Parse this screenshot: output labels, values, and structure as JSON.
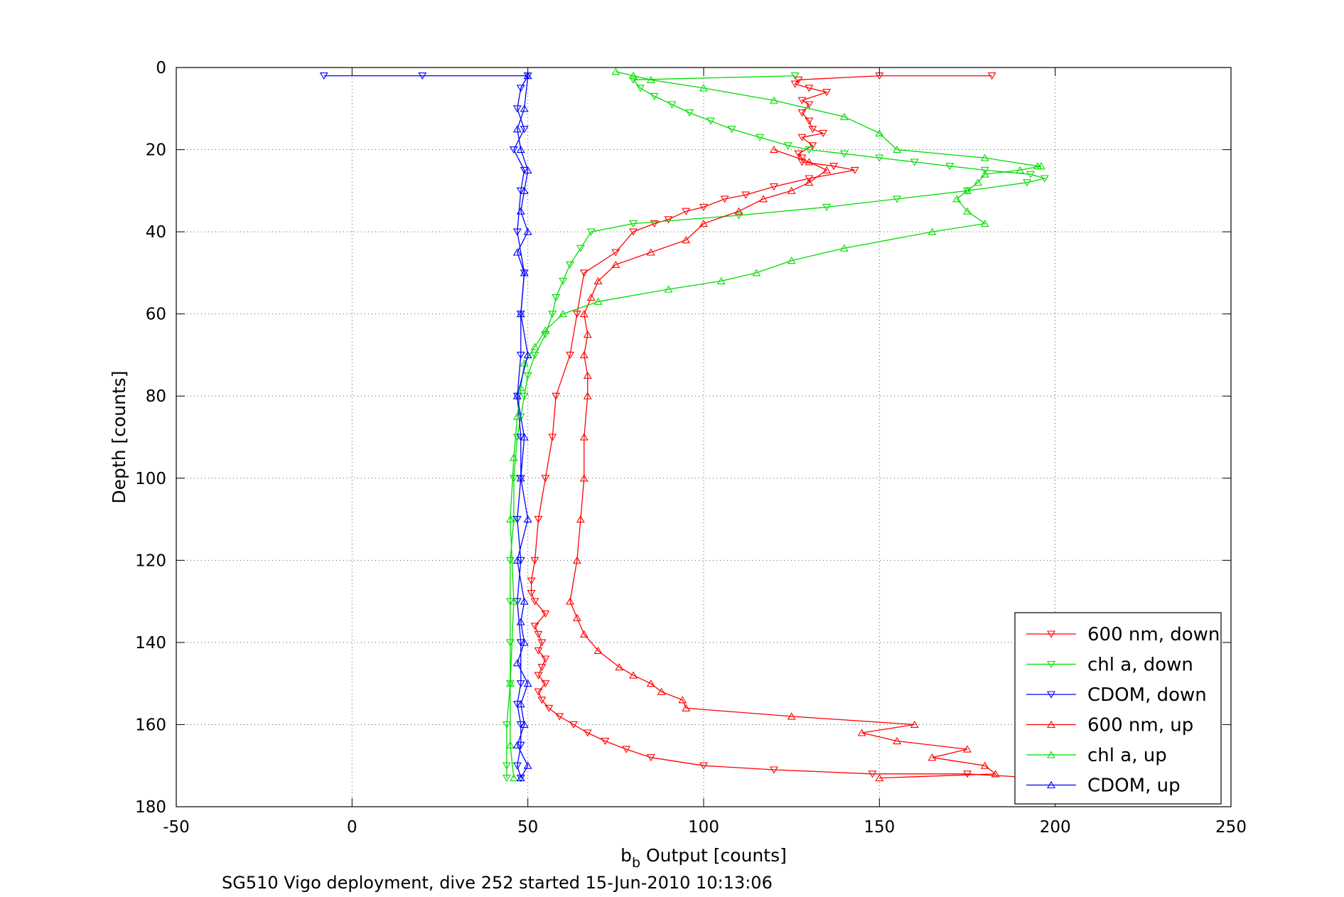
{
  "chart_data": {
    "type": "line",
    "xlabel_main": "b",
    "xlabel_sub": "b",
    "xlabel_rest": " Output [counts]",
    "ylabel": "Depth [counts]",
    "caption": "SG510 Vigo deployment, dive 252 started 15-Jun-2010 10:13:06",
    "xlim": [
      -50,
      250
    ],
    "ylim": [
      0,
      180
    ],
    "y_reversed": true,
    "xticks": [
      -50,
      0,
      50,
      100,
      150,
      200,
      250
    ],
    "yticks": [
      0,
      20,
      40,
      60,
      80,
      100,
      120,
      140,
      160,
      180
    ],
    "xtick_labels": [
      "-50",
      "0",
      "50",
      "100",
      "150",
      "200",
      "250"
    ],
    "ytick_labels": [
      "0",
      "20",
      "40",
      "60",
      "80",
      "100",
      "120",
      "140",
      "160",
      "180"
    ],
    "grid": true,
    "legend_position": "bottom-right",
    "series": [
      {
        "name": "600 nm, down",
        "color": "#ff0000",
        "marker": "triangle-down",
        "x": [
          182,
          150,
          127,
          126,
          130,
          135,
          128,
          130,
          128,
          130,
          131,
          134,
          128,
          131,
          127,
          128,
          128,
          137,
          143,
          130,
          120,
          112,
          106,
          100,
          95,
          90,
          86,
          80,
          75,
          66,
          64,
          62,
          58,
          57,
          55,
          53,
          52,
          51,
          51,
          52,
          55,
          52,
          53,
          54,
          53,
          55,
          54,
          53,
          55,
          53,
          54,
          56,
          59,
          63,
          67,
          72,
          78,
          85,
          100,
          120,
          148,
          175,
          195,
          200
        ],
        "y": [
          2,
          2,
          3,
          4,
          5,
          6,
          8,
          9,
          11,
          13,
          15,
          16,
          17,
          19,
          21,
          22,
          23,
          24,
          25,
          27,
          29,
          31,
          32,
          34,
          35,
          37,
          38,
          40,
          45,
          50,
          60,
          70,
          80,
          90,
          100,
          110,
          120,
          125,
          128,
          130,
          133,
          136,
          138,
          140,
          142,
          144,
          146,
          148,
          150,
          152,
          154,
          156,
          158,
          160,
          162,
          164,
          166,
          168,
          170,
          171,
          172,
          172,
          173,
          173
        ]
      },
      {
        "name": "chl a, down",
        "color": "#00dd00",
        "marker": "triangle-down",
        "x": [
          126,
          80,
          82,
          86,
          91,
          96,
          102,
          108,
          116,
          124,
          130,
          140,
          150,
          160,
          170,
          180,
          193,
          197,
          192,
          175,
          155,
          135,
          110,
          80,
          68,
          65,
          62,
          60,
          58,
          57,
          55,
          52,
          50,
          49,
          48,
          47,
          46,
          46,
          45,
          45,
          45,
          45,
          44,
          44,
          44
        ],
        "y": [
          2,
          3,
          5,
          7,
          9,
          11,
          13,
          15,
          17,
          19,
          20,
          21,
          22,
          23,
          24,
          25,
          26,
          27,
          28,
          30,
          32,
          34,
          36,
          38,
          40,
          44,
          48,
          52,
          56,
          60,
          65,
          70,
          75,
          80,
          85,
          90,
          100,
          110,
          120,
          130,
          140,
          150,
          160,
          170,
          173
        ]
      },
      {
        "name": "CDOM, down",
        "color": "#0000ff",
        "marker": "triangle-down",
        "x": [
          -8,
          20,
          50,
          48,
          47,
          49,
          46,
          49,
          48,
          47,
          49,
          48,
          48,
          47,
          48,
          48,
          47,
          48,
          47,
          48,
          48,
          47,
          48,
          48,
          47,
          48
        ],
        "y": [
          2,
          2,
          2,
          5,
          10,
          15,
          20,
          25,
          30,
          40,
          50,
          60,
          70,
          80,
          90,
          100,
          110,
          120,
          130,
          140,
          150,
          155,
          160,
          165,
          170,
          173
        ]
      },
      {
        "name": "600 nm, up",
        "color": "#ff0000",
        "marker": "triangle-up",
        "x": [
          150,
          183,
          180,
          165,
          175,
          155,
          145,
          160,
          125,
          95,
          94,
          88,
          85,
          80,
          76,
          70,
          66,
          64,
          62,
          64,
          65,
          66,
          66,
          67,
          67,
          66,
          67,
          66,
          68,
          70,
          75,
          85,
          95,
          100,
          110,
          117,
          125,
          130,
          135,
          130,
          120
        ],
        "y": [
          173,
          172,
          170,
          168,
          166,
          164,
          162,
          160,
          158,
          156,
          154,
          152,
          150,
          148,
          146,
          142,
          138,
          134,
          130,
          120,
          110,
          100,
          90,
          80,
          75,
          70,
          65,
          60,
          56,
          52,
          48,
          45,
          42,
          38,
          35,
          32,
          30,
          28,
          25,
          23,
          20
        ]
      },
      {
        "name": "chl a, up",
        "color": "#00dd00",
        "marker": "triangle-up",
        "x": [
          46,
          45,
          45,
          46,
          45,
          46,
          47,
          48,
          49,
          52,
          55,
          60,
          70,
          90,
          105,
          115,
          125,
          140,
          165,
          180,
          175,
          172,
          175,
          178,
          180,
          190,
          196,
          195,
          180,
          155,
          150,
          140,
          120,
          100,
          85,
          80,
          75
        ],
        "y": [
          173,
          165,
          150,
          130,
          110,
          95,
          85,
          78,
          72,
          68,
          64,
          60,
          57,
          54,
          52,
          50,
          47,
          44,
          40,
          38,
          35,
          32,
          30,
          28,
          26,
          25,
          24,
          24,
          22,
          20,
          16,
          12,
          8,
          5,
          3,
          2,
          1
        ]
      },
      {
        "name": "CDOM, up",
        "color": "#0000ff",
        "marker": "triangle-up",
        "x": [
          48,
          50,
          47,
          49,
          48,
          50,
          47,
          49,
          48,
          49,
          47,
          50,
          48,
          49,
          47,
          50,
          48,
          49,
          47,
          50,
          48,
          49,
          50,
          48,
          47,
          49,
          50
        ],
        "y": [
          173,
          170,
          165,
          160,
          155,
          150,
          145,
          140,
          135,
          130,
          120,
          110,
          100,
          90,
          80,
          70,
          60,
          50,
          45,
          40,
          35,
          30,
          25,
          20,
          15,
          10,
          2
        ]
      }
    ]
  }
}
